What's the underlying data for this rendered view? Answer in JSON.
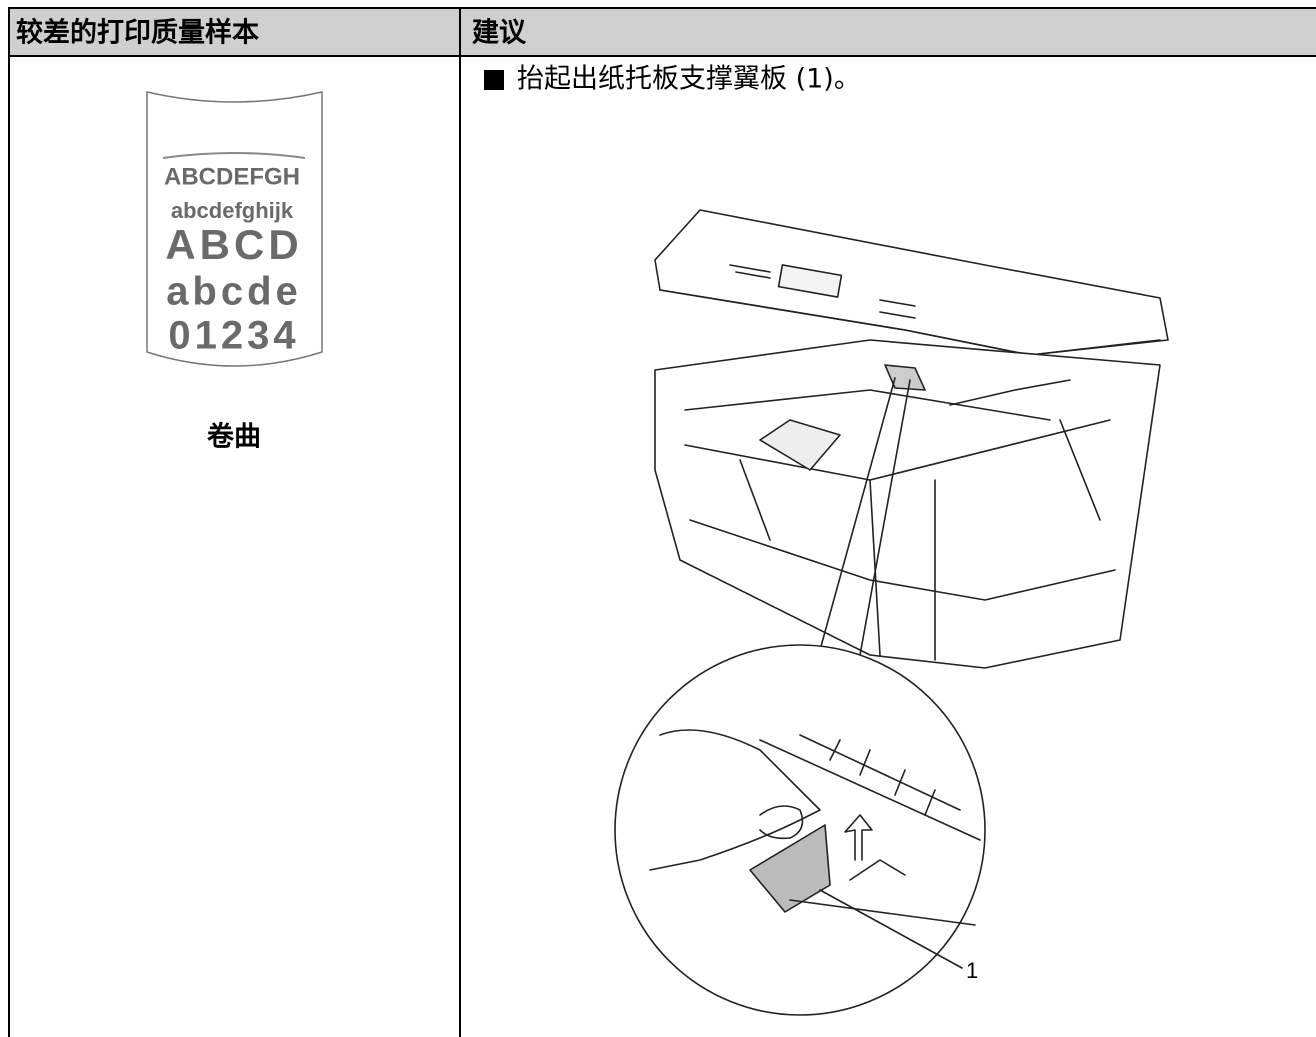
{
  "table": {
    "headers": [
      "较差的打印质量样本",
      "建议"
    ],
    "sample": {
      "lines": [
        "ABCDEFGH",
        "abcdefghijk",
        "ABCD",
        "abcde",
        "01234"
      ],
      "label": "卷曲"
    },
    "suggestion": {
      "instruction": "抬起出纸托板支撑翼板 (1)。",
      "callout": "1"
    }
  }
}
